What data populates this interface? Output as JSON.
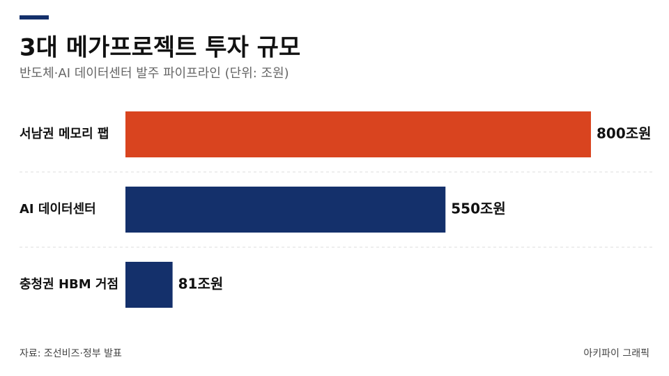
{
  "chart_data": {
    "type": "bar",
    "orientation": "horizontal",
    "title": "3대 메가프로젝트 투자 규모",
    "subtitle": "반도체·AI 데이터센터 발주 파이프라인 (단위: 조원)",
    "categories": [
      "서남권 메모리 팹",
      "AI 데이터센터",
      "충청권 HBM 거점"
    ],
    "values": [
      800,
      550,
      81
    ],
    "value_labels": [
      "800조원",
      "550조원",
      "81조원"
    ],
    "colors": [
      "#d9441f",
      "#14306b",
      "#14306b"
    ],
    "source": "자료: 조선비즈·정부 발표",
    "credit": "아키파이 그래픽"
  }
}
